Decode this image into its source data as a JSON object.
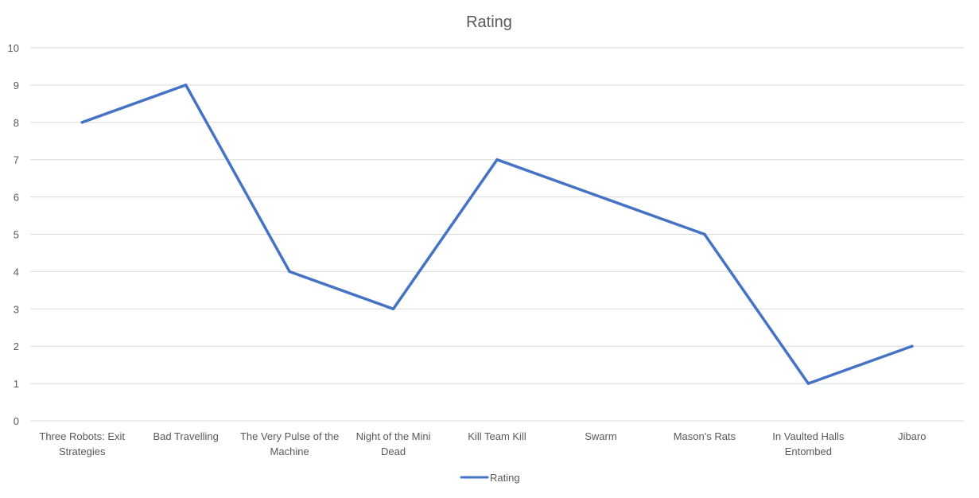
{
  "chart_data": {
    "type": "line",
    "title": "Rating",
    "xlabel": "",
    "ylabel": "",
    "categories": [
      [
        "Three Robots: Exit",
        "Strategies"
      ],
      [
        "Bad Travelling"
      ],
      [
        "The Very Pulse of the",
        "Machine"
      ],
      [
        "Night of the Mini",
        "Dead"
      ],
      [
        "Kill Team Kill"
      ],
      [
        "Swarm"
      ],
      [
        "Mason's Rats"
      ],
      [
        "In Vaulted Halls",
        "Entombed"
      ],
      [
        "Jibaro"
      ]
    ],
    "series": [
      {
        "name": "Rating",
        "values": [
          8,
          9,
          4,
          3,
          7,
          6,
          5,
          1,
          2
        ]
      }
    ],
    "ylim": [
      0,
      10
    ],
    "yticks": [
      0,
      1,
      2,
      3,
      4,
      5,
      6,
      7,
      8,
      9,
      10
    ],
    "grid": true,
    "legend": "bottom",
    "colors": {
      "series": "#4472c4",
      "grid": "#d9d9d9",
      "text": "#595959"
    }
  }
}
